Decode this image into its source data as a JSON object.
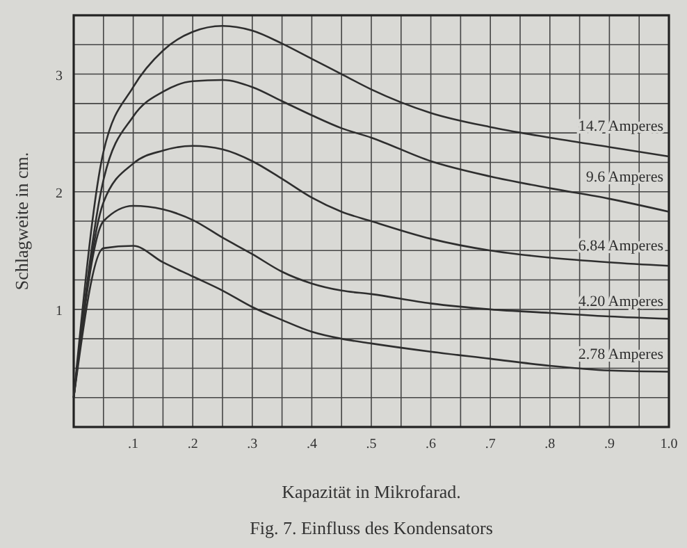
{
  "chart_data": {
    "type": "line",
    "title": "Fig. 7.  Einfluss des Kondensators",
    "xlabel": "Kapazität in Mikrofarad.",
    "ylabel": "Schlagweite in cm.",
    "x": [
      0,
      0.05,
      0.1,
      0.15,
      0.2,
      0.25,
      0.3,
      0.35,
      0.4,
      0.45,
      0.5,
      0.6,
      0.7,
      0.8,
      0.9,
      1.0
    ],
    "series": [
      {
        "name": "14.7 Amperes",
        "color": "#2e2e2e",
        "values": [
          0.25,
          2.34,
          2.89,
          3.2,
          3.36,
          3.41,
          3.37,
          3.26,
          3.13,
          3.0,
          2.87,
          2.67,
          2.55,
          2.46,
          2.38,
          2.3
        ]
      },
      {
        "name": "9.6 Amperes",
        "color": "#2e2e2e",
        "values": [
          0.25,
          2.1,
          2.64,
          2.85,
          2.94,
          2.95,
          2.89,
          2.77,
          2.65,
          2.54,
          2.46,
          2.26,
          2.13,
          2.03,
          1.94,
          1.83
        ]
      },
      {
        "name": "6.84 Amperes",
        "color": "#2e2e2e",
        "values": [
          0.25,
          1.91,
          2.24,
          2.35,
          2.39,
          2.36,
          2.26,
          2.11,
          1.95,
          1.83,
          1.75,
          1.6,
          1.5,
          1.44,
          1.4,
          1.37
        ]
      },
      {
        "name": "4.20 Amperes",
        "color": "#2e2e2e",
        "values": [
          0.25,
          1.75,
          1.88,
          1.85,
          1.76,
          1.61,
          1.47,
          1.32,
          1.22,
          1.16,
          1.13,
          1.05,
          1.0,
          0.97,
          0.94,
          0.92
        ]
      },
      {
        "name": "2.78 Amperes",
        "color": "#2e2e2e",
        "values": [
          0.25,
          1.52,
          1.54,
          1.4,
          1.28,
          1.16,
          1.02,
          0.91,
          0.81,
          0.75,
          0.71,
          0.64,
          0.58,
          0.52,
          0.48,
          0.47
        ]
      }
    ],
    "xlim": [
      0,
      1.0
    ],
    "ylim": [
      0,
      3.5
    ],
    "xticks": [
      {
        "value": 0.05,
        "label": null
      },
      {
        "value": 0.1,
        "label": ".1"
      },
      {
        "value": 0.15,
        "label": null
      },
      {
        "value": 0.2,
        "label": ".2"
      },
      {
        "value": 0.25,
        "label": null
      },
      {
        "value": 0.3,
        "label": ".3"
      },
      {
        "value": 0.35,
        "label": null
      },
      {
        "value": 0.4,
        "label": ".4"
      },
      {
        "value": 0.45,
        "label": null
      },
      {
        "value": 0.5,
        "label": ".5"
      },
      {
        "value": 0.55,
        "label": null
      },
      {
        "value": 0.6,
        "label": ".6"
      },
      {
        "value": 0.65,
        "label": null
      },
      {
        "value": 0.7,
        "label": ".7"
      },
      {
        "value": 0.75,
        "label": null
      },
      {
        "value": 0.8,
        "label": ".8"
      },
      {
        "value": 0.85,
        "label": null
      },
      {
        "value": 0.9,
        "label": ".9"
      },
      {
        "value": 0.95,
        "label": null
      },
      {
        "value": 1.0,
        "label": "1.0"
      }
    ],
    "yticks": [
      {
        "value": 0.25,
        "label": null
      },
      {
        "value": 0.5,
        "label": null
      },
      {
        "value": 0.75,
        "label": null
      },
      1,
      {
        "value": 1.25,
        "label": null
      },
      {
        "value": 1.5,
        "label": null
      },
      {
        "value": 1.75,
        "label": null
      },
      2,
      {
        "value": 2.25,
        "label": null
      },
      {
        "value": 2.5,
        "label": null
      },
      {
        "value": 2.75,
        "label": null
      },
      3,
      {
        "value": 3.25,
        "label": null
      }
    ],
    "grid": true,
    "marker": "none",
    "line_style": "solid"
  }
}
